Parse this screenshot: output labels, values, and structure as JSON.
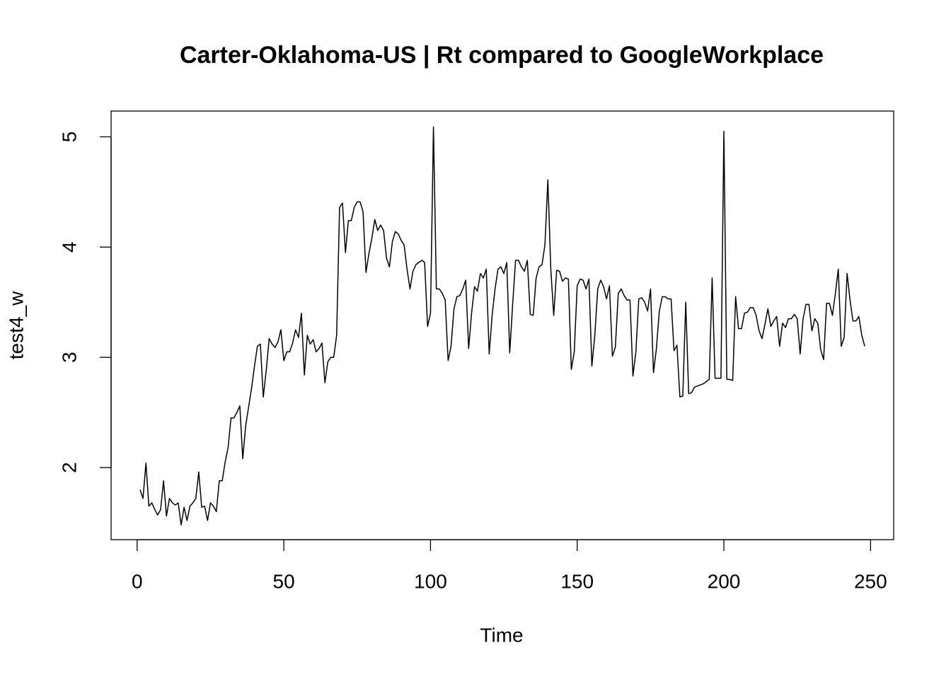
{
  "chart_data": {
    "type": "line",
    "title": "Carter-Oklahoma-US | Rt compared to GoogleWorkplace",
    "x_label": "Time",
    "y_label": "test4_w",
    "x": [
      1,
      2,
      3,
      4,
      5,
      6,
      7,
      8,
      9,
      10,
      11,
      12,
      13,
      14,
      15,
      16,
      17,
      18,
      19,
      20,
      21,
      22,
      23,
      24,
      25,
      26,
      27,
      28,
      29,
      30,
      31,
      32,
      33,
      34,
      35,
      36,
      37,
      38,
      39,
      40,
      41,
      42,
      43,
      44,
      45,
      46,
      47,
      48,
      49,
      50,
      51,
      52,
      53,
      54,
      55,
      56,
      57,
      58,
      59,
      60,
      61,
      62,
      63,
      64,
      65,
      66,
      67,
      68,
      69,
      70,
      71,
      72,
      73,
      74,
      75,
      76,
      77,
      78,
      79,
      80,
      81,
      82,
      83,
      84,
      85,
      86,
      87,
      88,
      89,
      90,
      91,
      92,
      93,
      94,
      95,
      96,
      97,
      98,
      99,
      100,
      101,
      102,
      103,
      104,
      105,
      106,
      107,
      108,
      109,
      110,
      111,
      112,
      113,
      114,
      115,
      116,
      117,
      118,
      119,
      120,
      121,
      122,
      123,
      124,
      125,
      126,
      127,
      128,
      129,
      130,
      131,
      132,
      133,
      134,
      135,
      136,
      137,
      138,
      139,
      140,
      141,
      142,
      143,
      144,
      145,
      146,
      147,
      148,
      149,
      150,
      151,
      152,
      153,
      154,
      155,
      156,
      157,
      158,
      159,
      160,
      161,
      162,
      163,
      164,
      165,
      166,
      167,
      168,
      169,
      170,
      171,
      172,
      173,
      174,
      175,
      176,
      177,
      178,
      179,
      180,
      181,
      182,
      183,
      184,
      185,
      186,
      187,
      188,
      189,
      190,
      191,
      192,
      193,
      194,
      195,
      196,
      197,
      198,
      199,
      200,
      201,
      202,
      203,
      204,
      205,
      206,
      207,
      208,
      209,
      210,
      211,
      212,
      213,
      214,
      215,
      216,
      217,
      218,
      219,
      220,
      221,
      222,
      223,
      224,
      225,
      226,
      227,
      228,
      229,
      230,
      231,
      232,
      233,
      234,
      235,
      236,
      237,
      238,
      239,
      240,
      241,
      242,
      243,
      244,
      245,
      246,
      247,
      248
    ],
    "series": [
      {
        "name": "test4_w",
        "color": "#000000",
        "values": [
          1.8,
          1.72,
          2.04,
          1.65,
          1.68,
          1.62,
          1.57,
          1.62,
          1.88,
          1.56,
          1.72,
          1.68,
          1.66,
          1.68,
          1.48,
          1.64,
          1.52,
          1.65,
          1.68,
          1.72,
          1.96,
          1.64,
          1.65,
          1.52,
          1.68,
          1.65,
          1.6,
          1.88,
          1.88,
          2.05,
          2.18,
          2.45,
          2.45,
          2.5,
          2.56,
          2.08,
          2.38,
          2.55,
          2.72,
          2.92,
          3.1,
          3.12,
          2.64,
          2.88,
          3.17,
          3.12,
          3.09,
          3.14,
          3.25,
          2.97,
          3.05,
          3.05,
          3.13,
          3.25,
          3.18,
          3.4,
          2.84,
          3.2,
          3.12,
          3.16,
          3.05,
          3.08,
          3.13,
          2.77,
          2.96,
          3.0,
          3.0,
          3.2,
          4.36,
          4.4,
          3.95,
          4.24,
          4.24,
          4.36,
          4.41,
          4.41,
          4.32,
          3.77,
          3.94,
          4.08,
          4.25,
          4.15,
          4.2,
          4.15,
          3.9,
          3.82,
          4.05,
          4.14,
          4.12,
          4.06,
          4.02,
          3.8,
          3.62,
          3.78,
          3.84,
          3.86,
          3.88,
          3.86,
          3.28,
          3.4,
          5.09,
          3.62,
          3.62,
          3.58,
          3.52,
          2.97,
          3.1,
          3.44,
          3.55,
          3.56,
          3.62,
          3.7,
          3.08,
          3.4,
          3.64,
          3.6,
          3.76,
          3.72,
          3.8,
          3.03,
          3.38,
          3.62,
          3.8,
          3.82,
          3.76,
          3.86,
          3.04,
          3.48,
          3.88,
          3.88,
          3.82,
          3.78,
          3.88,
          3.39,
          3.38,
          3.72,
          3.82,
          3.84,
          4.02,
          4.61,
          3.8,
          3.38,
          3.79,
          3.78,
          3.69,
          3.72,
          3.71,
          2.89,
          3.05,
          3.65,
          3.71,
          3.7,
          3.62,
          3.71,
          2.92,
          3.2,
          3.62,
          3.7,
          3.64,
          3.53,
          3.65,
          3.01,
          3.09,
          3.58,
          3.62,
          3.56,
          3.52,
          3.52,
          2.83,
          3.05,
          3.53,
          3.54,
          3.5,
          3.42,
          3.62,
          2.86,
          3.08,
          3.42,
          3.55,
          3.55,
          3.53,
          3.53,
          3.06,
          3.11,
          2.64,
          2.65,
          3.5,
          2.67,
          2.68,
          2.73,
          2.74,
          2.75,
          2.76,
          2.78,
          2.8,
          3.72,
          2.81,
          2.81,
          2.81,
          5.05,
          2.8,
          2.8,
          2.79,
          3.55,
          3.26,
          3.26,
          3.4,
          3.41,
          3.45,
          3.45,
          3.38,
          3.24,
          3.17,
          3.3,
          3.44,
          3.28,
          3.33,
          3.37,
          3.1,
          3.31,
          3.27,
          3.35,
          3.35,
          3.39,
          3.35,
          3.03,
          3.35,
          3.48,
          3.48,
          3.24,
          3.35,
          3.31,
          3.07,
          2.98,
          3.49,
          3.49,
          3.38,
          3.58,
          3.8,
          3.1,
          3.18,
          3.76,
          3.52,
          3.33,
          3.33,
          3.37,
          3.2,
          3.1
        ]
      }
    ],
    "xlim": [
      -8.88,
      257.88
    ],
    "ylim": [
      1.346,
      5.234
    ],
    "xticks": [
      0,
      50,
      100,
      150,
      200,
      250
    ],
    "yticks": [
      2,
      3,
      4,
      5
    ]
  }
}
